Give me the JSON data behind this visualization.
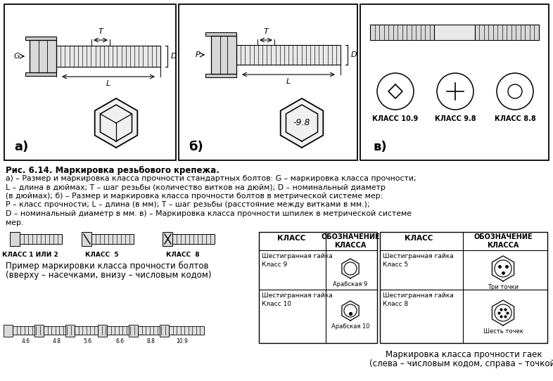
{
  "bg_color": "#ffffff",
  "title_text": "Рис. 6.14. Маркировка резьбового крепежа.",
  "description_lines": [
    "а) – Размер и маркировка класса прочности стандартных болтов: G – маркировка класса прочности;",
    "L – длина в дюймах; Т – шаг резьбы (количество витков на дюйм); D – номинальный диаметр",
    "(в дюймах); б) – Размер и маркировка класса прочности болтов в метрической системе мер:",
    "Р – класс прочности; L – длина (в мм); Т – шаг резьбы (расстояние между витками в мм.);",
    "D – номинальный диаметр в мм. в) – Маркировка класса прочности шпилек в метрической системе",
    "мер."
  ],
  "bolt_class_labels": [
    "КЛАСС 1 ИЛИ 2",
    "КЛАСС  5",
    "КЛАСС  8"
  ],
  "caption_bolt": [
    "Пример маркировки класса прочности болтов",
    "(вверху – насечками, внизу – числовым кодом)"
  ],
  "caption_nut": [
    "Маркировка класса прочности гаек",
    "(слева – числовым кодом, справа – точкой)"
  ],
  "table1_title_col1": "КЛАСС",
  "table1_title_col2": "ОБОЗНАЧЕНИЕ\nКЛАССА",
  "table2_title_col1": "КЛАСС",
  "table2_title_col2": "ОБОЗНАЧЕНИЕ\nКЛАССА",
  "panel_a_label": "а)",
  "panel_b_label": "б)",
  "panel_v_label": "в)",
  "panel_v_class1": "КЛАСС 10.9",
  "panel_v_class2": "КЛАСС 9.8",
  "panel_v_class3": "КЛАСС 8.8"
}
